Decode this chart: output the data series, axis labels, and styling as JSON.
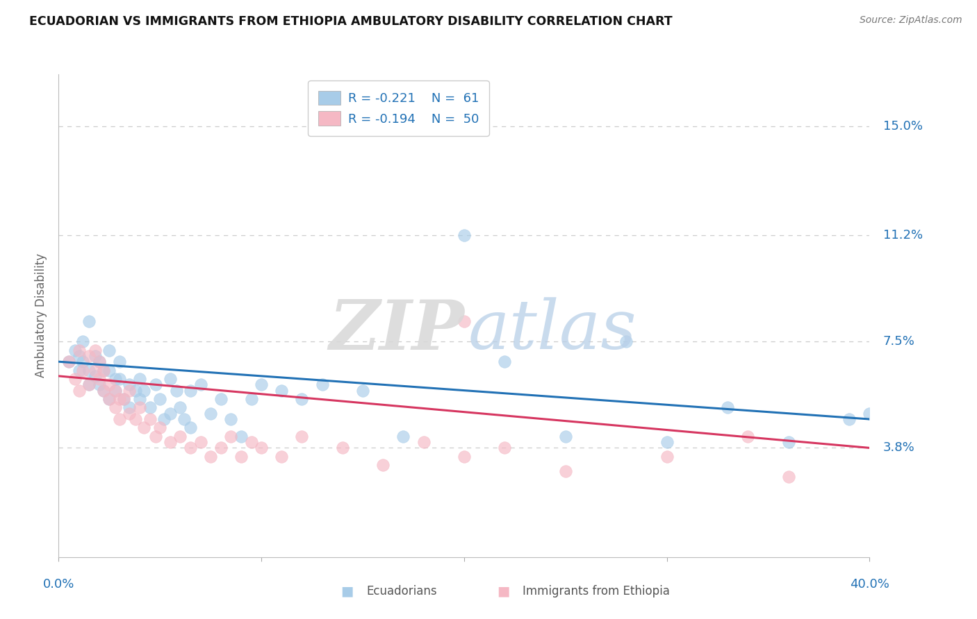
{
  "title": "ECUADORIAN VS IMMIGRANTS FROM ETHIOPIA AMBULATORY DISABILITY CORRELATION CHART",
  "source_text": "Source: ZipAtlas.com",
  "ylabel": "Ambulatory Disability",
  "ytick_labels": [
    "3.8%",
    "7.5%",
    "11.2%",
    "15.0%"
  ],
  "ytick_values": [
    0.038,
    0.075,
    0.112,
    0.15
  ],
  "xlim": [
    0.0,
    0.4
  ],
  "ylim": [
    0.0,
    0.168
  ],
  "legend_blue_r": "R = -0.221",
  "legend_blue_n": "N =  61",
  "legend_pink_r": "R = -0.194",
  "legend_pink_n": "N =  50",
  "blue_scatter_x": [
    0.005,
    0.008,
    0.01,
    0.01,
    0.012,
    0.012,
    0.015,
    0.015,
    0.015,
    0.018,
    0.018,
    0.02,
    0.02,
    0.022,
    0.022,
    0.025,
    0.025,
    0.025,
    0.028,
    0.028,
    0.03,
    0.03,
    0.032,
    0.035,
    0.035,
    0.038,
    0.04,
    0.04,
    0.042,
    0.045,
    0.048,
    0.05,
    0.052,
    0.055,
    0.055,
    0.058,
    0.06,
    0.062,
    0.065,
    0.065,
    0.07,
    0.075,
    0.08,
    0.085,
    0.09,
    0.095,
    0.1,
    0.11,
    0.12,
    0.13,
    0.15,
    0.17,
    0.2,
    0.22,
    0.25,
    0.28,
    0.3,
    0.33,
    0.36,
    0.39,
    0.4
  ],
  "blue_scatter_y": [
    0.068,
    0.072,
    0.065,
    0.07,
    0.075,
    0.068,
    0.082,
    0.065,
    0.06,
    0.07,
    0.063,
    0.068,
    0.06,
    0.065,
    0.058,
    0.072,
    0.065,
    0.055,
    0.062,
    0.058,
    0.068,
    0.062,
    0.055,
    0.06,
    0.052,
    0.058,
    0.062,
    0.055,
    0.058,
    0.052,
    0.06,
    0.055,
    0.048,
    0.062,
    0.05,
    0.058,
    0.052,
    0.048,
    0.058,
    0.045,
    0.06,
    0.05,
    0.055,
    0.048,
    0.042,
    0.055,
    0.06,
    0.058,
    0.055,
    0.06,
    0.058,
    0.042,
    0.112,
    0.068,
    0.042,
    0.075,
    0.04,
    0.052,
    0.04,
    0.048,
    0.05
  ],
  "pink_scatter_x": [
    0.005,
    0.008,
    0.01,
    0.01,
    0.012,
    0.015,
    0.015,
    0.018,
    0.018,
    0.02,
    0.02,
    0.022,
    0.022,
    0.025,
    0.025,
    0.028,
    0.028,
    0.03,
    0.03,
    0.032,
    0.035,
    0.035,
    0.038,
    0.04,
    0.042,
    0.045,
    0.048,
    0.05,
    0.055,
    0.06,
    0.065,
    0.07,
    0.075,
    0.08,
    0.085,
    0.09,
    0.095,
    0.1,
    0.11,
    0.12,
    0.14,
    0.16,
    0.18,
    0.2,
    0.22,
    0.25,
    0.3,
    0.34,
    0.36,
    0.2
  ],
  "pink_scatter_y": [
    0.068,
    0.062,
    0.058,
    0.072,
    0.065,
    0.07,
    0.06,
    0.065,
    0.072,
    0.062,
    0.068,
    0.058,
    0.065,
    0.055,
    0.06,
    0.052,
    0.058,
    0.055,
    0.048,
    0.055,
    0.05,
    0.058,
    0.048,
    0.052,
    0.045,
    0.048,
    0.042,
    0.045,
    0.04,
    0.042,
    0.038,
    0.04,
    0.035,
    0.038,
    0.042,
    0.035,
    0.04,
    0.038,
    0.035,
    0.042,
    0.038,
    0.032,
    0.04,
    0.035,
    0.038,
    0.03,
    0.035,
    0.042,
    0.028,
    0.082
  ],
  "blue_line_y_start": 0.068,
  "blue_line_y_end": 0.048,
  "pink_line_y_start": 0.063,
  "pink_line_y_end": 0.038,
  "blue_scatter_color": "#a8cce8",
  "pink_scatter_color": "#f5b8c4",
  "blue_line_color": "#2171b5",
  "pink_line_color": "#d63660",
  "grid_color": "#cccccc",
  "background_color": "#ffffff",
  "legend_label_blue": "Ecuadorians",
  "legend_label_pink": "Immigrants from Ethiopia",
  "watermark_zip_color": "#d8d8d8",
  "watermark_atlas_color": "#b8cfe8"
}
